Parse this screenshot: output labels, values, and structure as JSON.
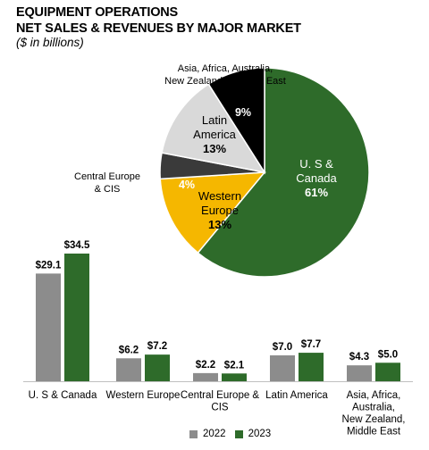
{
  "header": {
    "title_line1": "EQUIPMENT OPERATIONS",
    "title_line2": "NET SALES & REVENUES BY MAJOR MARKET",
    "subtitle": "($ in billions)"
  },
  "colors": {
    "series_2022": "#8c8c8c",
    "series_2023": "#2e6b2a",
    "pie_us_canada": "#2e6b2a",
    "pie_western_europe": "#f5b700",
    "pie_central_europe": "#3a3a3a",
    "pie_latin_america": "#d9d9d9",
    "pie_asia": "#000000"
  },
  "chart_data": [
    {
      "type": "pie",
      "slices": [
        {
          "label": "U. S &\nCanada",
          "pct_label": "61%",
          "value": 61,
          "color_key": "pie_us_canada",
          "label_color": "#ffffff",
          "label_position": "inside"
        },
        {
          "label": "Western\nEurope",
          "pct_label": "13%",
          "value": 13,
          "color_key": "pie_western_europe",
          "label_color": "#000000",
          "label_position": "inside"
        },
        {
          "label": "Central Europe\n& CIS",
          "pct_label": "4%",
          "value": 4,
          "color_key": "pie_central_europe",
          "label_color": "#ffffff",
          "label_position": "outside-left"
        },
        {
          "label": "Latin\nAmerica",
          "pct_label": "13%",
          "value": 13,
          "color_key": "pie_latin_america",
          "label_color": "#000000",
          "label_position": "inside"
        },
        {
          "label": "Asia, Africa, Australia,\nNew Zealand & Middle East",
          "pct_label": "9%",
          "value": 9,
          "color_key": "pie_asia",
          "label_color": "#ffffff",
          "label_position": "outside-top"
        }
      ]
    },
    {
      "type": "bar",
      "categories": [
        "U. S & Canada",
        "Western Europe",
        "Central Europe &\nCIS",
        "Latin America",
        "Asia, Africa,\nAustralia,\nNew Zealand,\nMiddle East"
      ],
      "series": [
        {
          "name": "2022",
          "values": [
            29.1,
            6.2,
            2.2,
            7.0,
            4.3
          ],
          "value_labels": [
            "$29.1",
            "$6.2",
            "$2.2",
            "$7.0",
            "$4.3"
          ]
        },
        {
          "name": "2023",
          "values": [
            34.5,
            7.2,
            2.1,
            7.7,
            5.0
          ],
          "value_labels": [
            "$34.5",
            "$7.2",
            "$2.1",
            "$7.7",
            "$5.0"
          ]
        }
      ],
      "ylim": [
        0,
        34.5
      ],
      "legend": "bottom-center"
    }
  ]
}
